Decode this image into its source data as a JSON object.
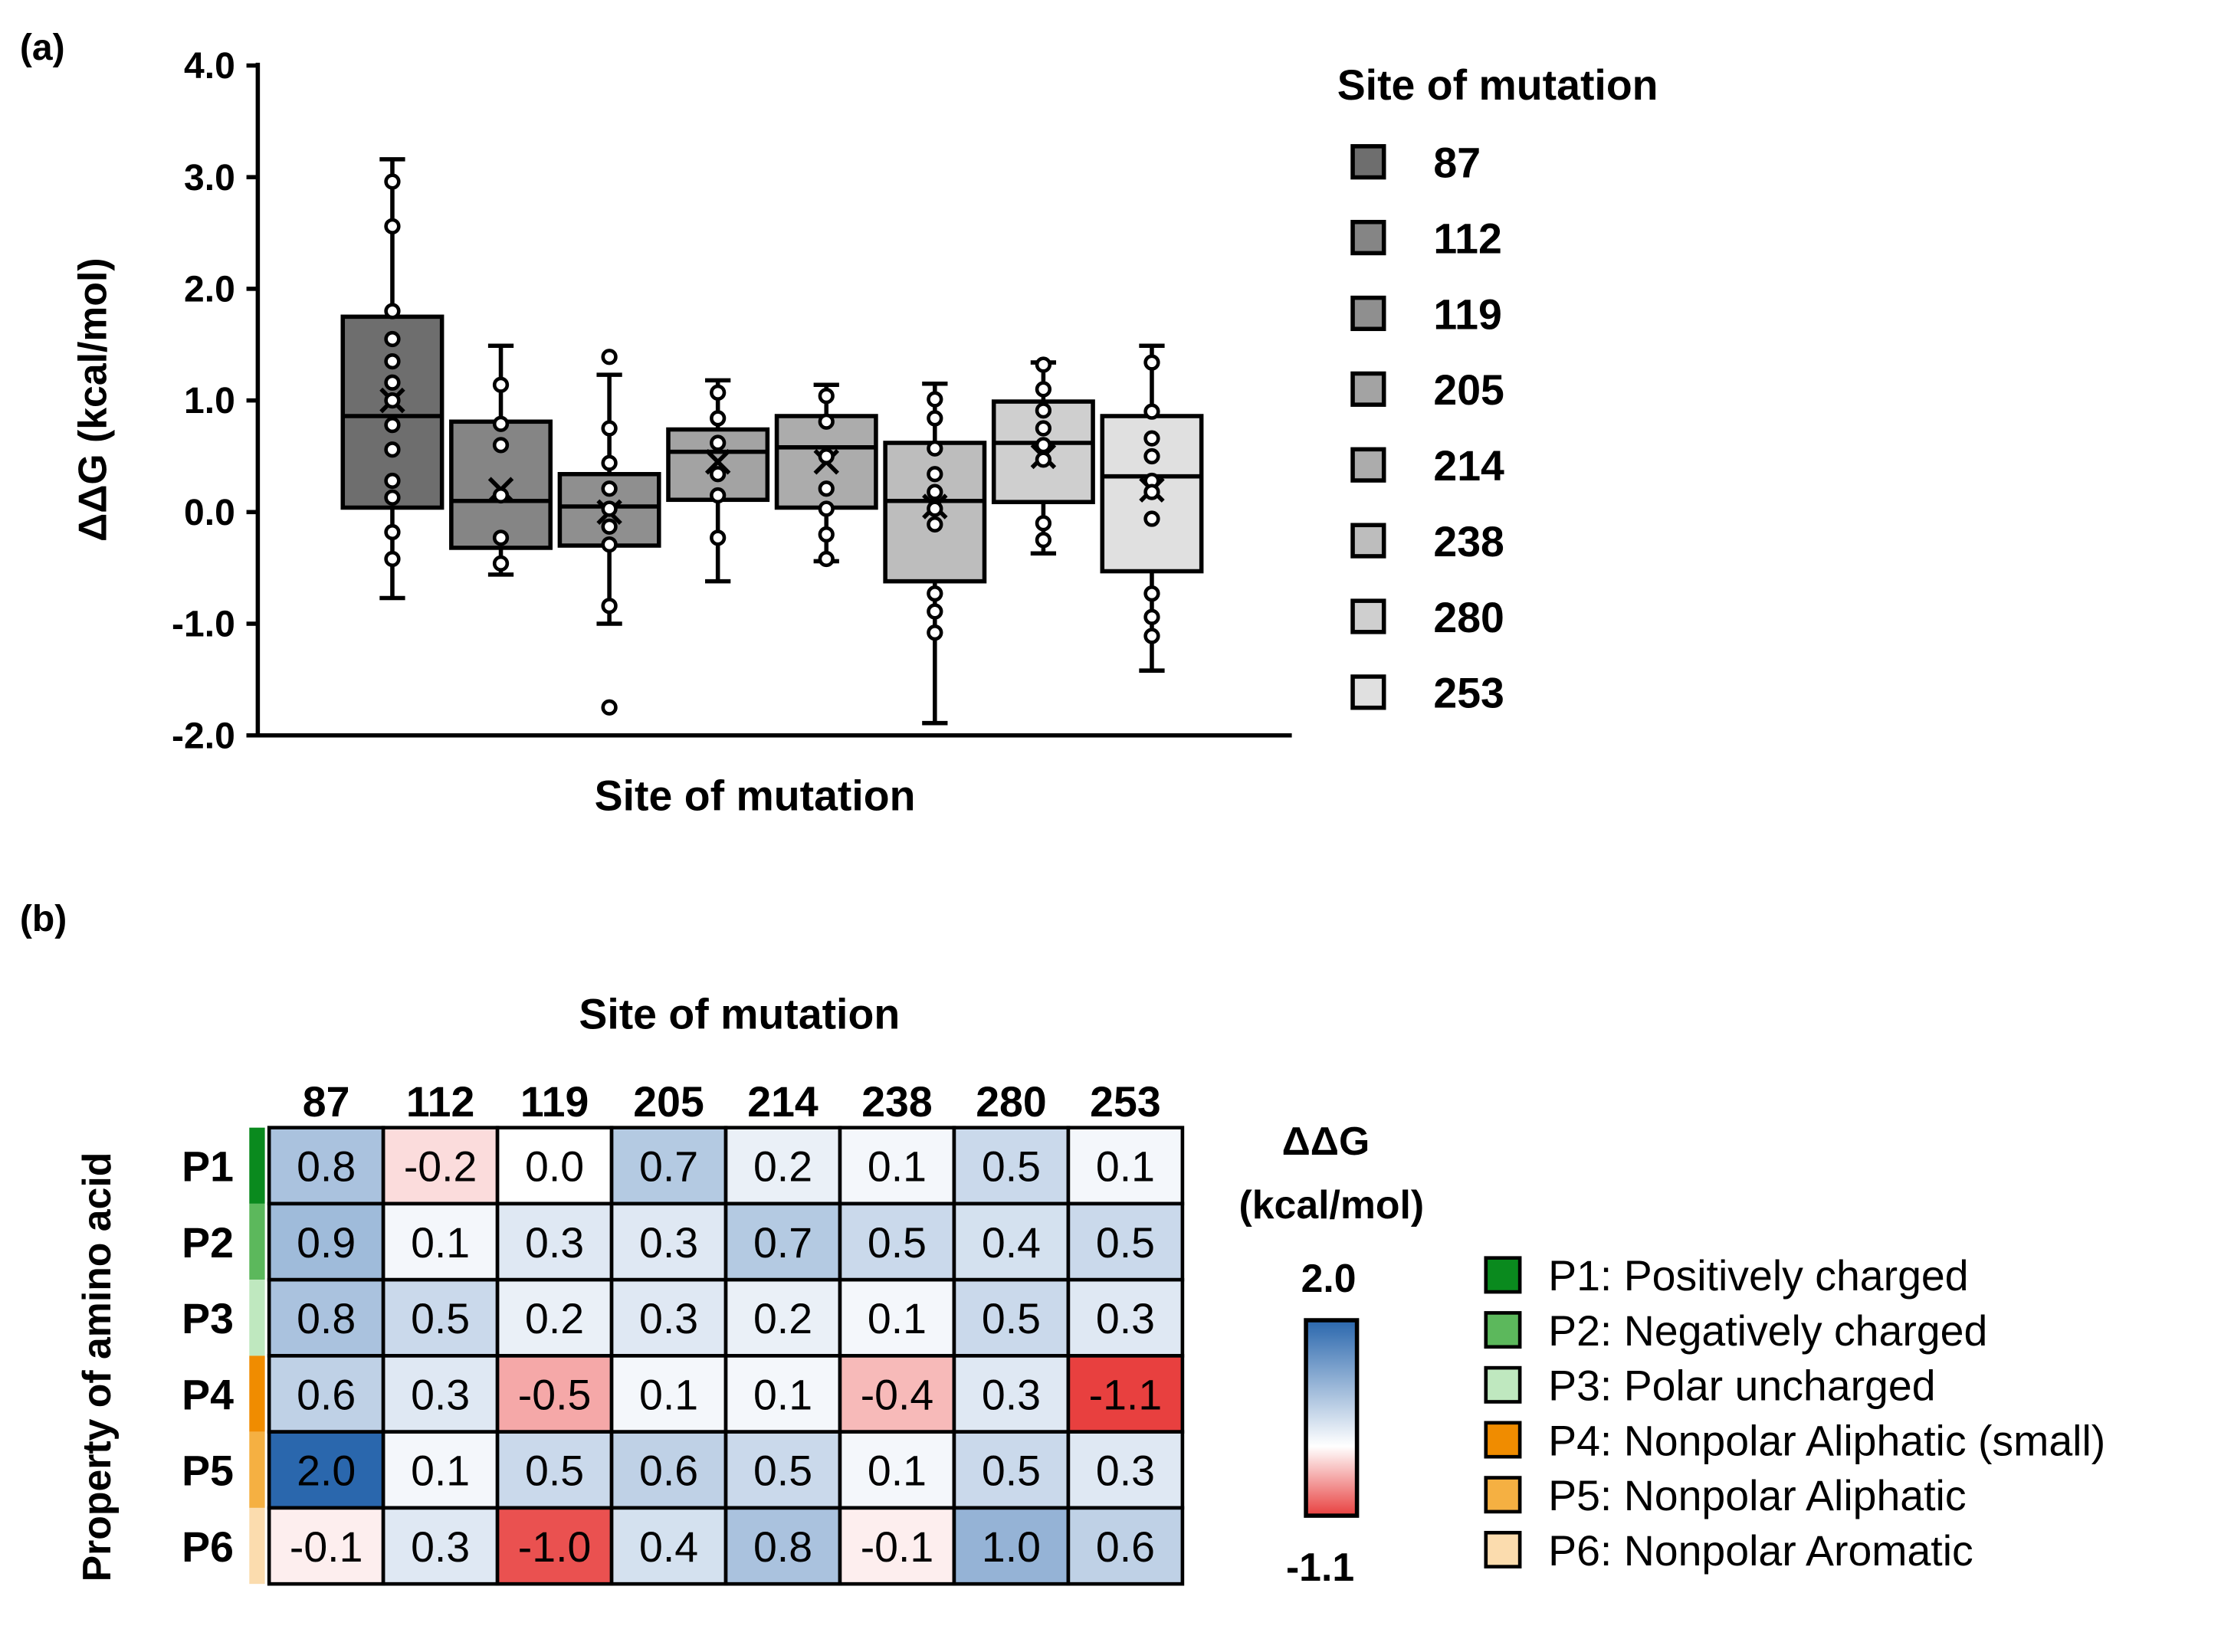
{
  "chart_data": [
    {
      "type": "box",
      "panel_label": "(a)",
      "xlabel": "Site of mutation",
      "ylabel": "ΔΔG (kcal/mol)",
      "ylim": [
        -2.0,
        4.0
      ],
      "yticks": [
        "4.0",
        "3.0",
        "2.0",
        "1.0",
        "0.0",
        "-1.0",
        "-2.0"
      ],
      "ytick_values": [
        4,
        3,
        2,
        1,
        0,
        -1,
        -2
      ],
      "legend_title": "Site of mutation",
      "legend_position": "right",
      "series": [
        {
          "name": "87",
          "color": "#6e6e6e",
          "q1": 0.04,
          "median": 0.86,
          "q3": 1.75,
          "whisker_low": -0.77,
          "whisker_high": 3.16,
          "mean": 1.0,
          "points": [
            2.96,
            2.56,
            1.8,
            1.55,
            1.35,
            1.16,
            1.0,
            0.78,
            0.56,
            0.28,
            0.13,
            -0.18,
            -0.42
          ]
        },
        {
          "name": "112",
          "color": "#858585",
          "q1": -0.32,
          "median": 0.1,
          "q3": 0.81,
          "whisker_low": -0.56,
          "whisker_high": 1.49,
          "mean": 0.2,
          "points": [
            1.14,
            0.79,
            0.6,
            0.15,
            -0.23,
            -0.46
          ]
        },
        {
          "name": "119",
          "color": "#8f8f8f",
          "q1": -0.3,
          "median": 0.05,
          "q3": 0.34,
          "whisker_low": -1.0,
          "whisker_high": 1.23,
          "mean": 0.0,
          "points": [
            1.39,
            0.75,
            0.44,
            0.21,
            0.03,
            -0.13,
            -0.29,
            -0.84,
            -1.75
          ]
        },
        {
          "name": "205",
          "color": "#a3a3a3",
          "q1": 0.11,
          "median": 0.54,
          "q3": 0.74,
          "whisker_low": -0.62,
          "whisker_high": 1.18,
          "mean": 0.45,
          "points": [
            1.07,
            0.84,
            0.62,
            0.34,
            0.15,
            -0.23
          ]
        },
        {
          "name": "214",
          "color": "#acacac",
          "q1": 0.04,
          "median": 0.58,
          "q3": 0.86,
          "whisker_low": -0.44,
          "whisker_high": 1.14,
          "mean": 0.45,
          "points": [
            1.04,
            0.81,
            0.5,
            0.21,
            0.03,
            -0.2,
            -0.42
          ]
        },
        {
          "name": "238",
          "color": "#bdbdbd",
          "q1": -0.62,
          "median": 0.1,
          "q3": 0.62,
          "whisker_low": -1.89,
          "whisker_high": 1.15,
          "mean": 0.05,
          "points": [
            1.01,
            0.84,
            0.57,
            0.34,
            0.18,
            0.03,
            -0.11,
            -0.73,
            -0.89,
            -1.08
          ]
        },
        {
          "name": "280",
          "color": "#cfcfcf",
          "q1": 0.09,
          "median": 0.62,
          "q3": 0.99,
          "whisker_low": -0.37,
          "whisker_high": 1.34,
          "mean": 0.5,
          "points": [
            1.32,
            1.1,
            0.91,
            0.75,
            0.6,
            0.47,
            -0.1,
            -0.25
          ]
        },
        {
          "name": "253",
          "color": "#e0e0e0",
          "q1": -0.53,
          "median": 0.32,
          "q3": 0.86,
          "whisker_low": -1.42,
          "whisker_high": 1.49,
          "mean": 0.2,
          "points": [
            1.34,
            0.9,
            0.66,
            0.5,
            0.28,
            0.18,
            -0.06,
            -0.73,
            -0.94,
            -1.11
          ]
        }
      ]
    },
    {
      "type": "heatmap",
      "panel_label": "(b)",
      "title": "Site of mutation",
      "ylabel": "Property of amino acid",
      "columns": [
        "87",
        "112",
        "119",
        "205",
        "214",
        "238",
        "280",
        "253"
      ],
      "rows": [
        {
          "name": "P1",
          "color": "#0a8a1e",
          "legend": "P1: Positively charged",
          "values": [
            "0.8",
            "-0.2",
            "0.0",
            "0.7",
            "0.2",
            "0.1",
            "0.5",
            "0.1"
          ]
        },
        {
          "name": "P2",
          "color": "#5cb85c",
          "legend": "P2: Negatively charged",
          "values": [
            "0.9",
            "0.1",
            "0.3",
            "0.3",
            "0.7",
            "0.5",
            "0.4",
            "0.5"
          ]
        },
        {
          "name": "P3",
          "color": "#bfe8bf",
          "legend": "P3: Polar uncharged",
          "values": [
            "0.8",
            "0.5",
            "0.2",
            "0.3",
            "0.2",
            "0.1",
            "0.5",
            "0.3"
          ]
        },
        {
          "name": "P4",
          "color": "#f08c00",
          "legend": "P4: Nonpolar Aliphatic (small)",
          "values": [
            "0.6",
            "0.3",
            "-0.5",
            "0.1",
            "0.1",
            "-0.4",
            "0.3",
            "-1.1"
          ]
        },
        {
          "name": "P5",
          "color": "#f5b042",
          "legend": "P5: Nonpolar Aliphatic",
          "values": [
            "2.0",
            "0.1",
            "0.5",
            "0.6",
            "0.5",
            "0.1",
            "0.5",
            "0.3"
          ]
        },
        {
          "name": "P6",
          "color": "#fbdcae",
          "legend": "P6: Nonpolar Aromatic",
          "values": [
            "-0.1",
            "0.3",
            "-1.0",
            "0.4",
            "0.8",
            "-0.1",
            "1.0",
            "0.6"
          ]
        }
      ],
      "colorbar": {
        "title": "ΔΔG",
        "unit": "(kcal/mol)",
        "max_label": "2.0",
        "min_label": "-1.1",
        "max": 2.0,
        "min": -1.1,
        "max_color": "#2a67ad",
        "mid_color": "#ffffff",
        "min_color": "#e8403f"
      }
    }
  ]
}
